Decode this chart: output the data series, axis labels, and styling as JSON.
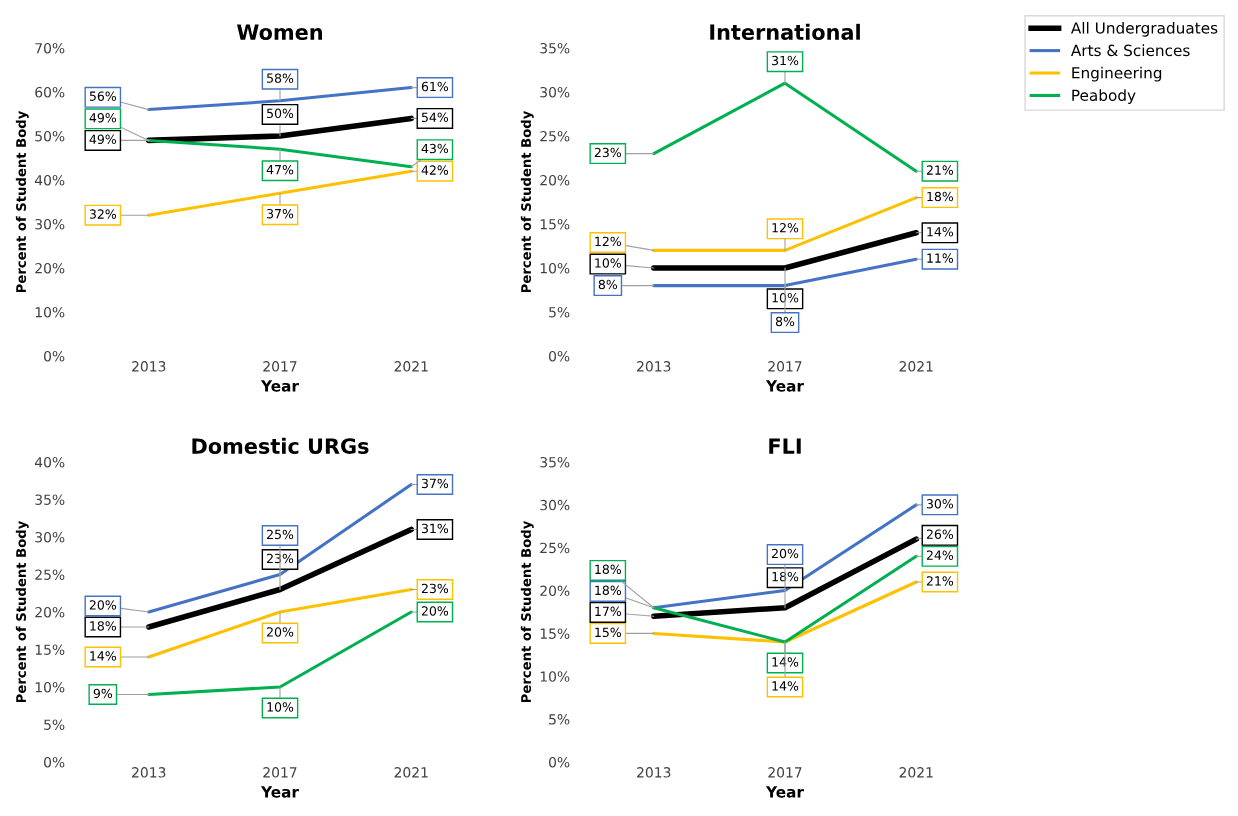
{
  "chart_data": [
    {
      "type": "line",
      "title": "Women",
      "xlabel": "Year",
      "ylabel": "Percent of Student Body",
      "categories": [
        "2013",
        "2017",
        "2021"
      ],
      "ylim": [
        0,
        70
      ],
      "yticks": [
        {
          "value": 0,
          "label": "0%"
        },
        {
          "value": 10,
          "label": "10%"
        },
        {
          "value": 20,
          "label": "20%"
        },
        {
          "value": 30,
          "label": "30%"
        },
        {
          "value": 40,
          "label": "40%"
        },
        {
          "value": 50,
          "label": "50%"
        },
        {
          "value": 60,
          "label": "60%"
        },
        {
          "value": 70,
          "label": "70%"
        }
      ],
      "grid": false,
      "legend": "right",
      "series": [
        {
          "name": "All Undergraduates",
          "color": "#000000",
          "values": [
            49,
            50,
            54
          ],
          "value_labels": [
            "49%",
            "50%",
            "54%"
          ]
        },
        {
          "name": "Arts & Sciences",
          "color": "#4472c4",
          "values": [
            56,
            58,
            61
          ],
          "value_labels": [
            "56%",
            "58%",
            "61%"
          ]
        },
        {
          "name": "Engineering",
          "color": "#ffc000",
          "values": [
            32,
            37,
            42
          ],
          "value_labels": [
            "32%",
            "37%",
            "42%"
          ]
        },
        {
          "name": "Peabody",
          "color": "#00b050",
          "values": [
            49,
            47,
            43
          ],
          "value_labels": [
            "49%",
            "47%",
            "43%"
          ]
        }
      ]
    },
    {
      "type": "line",
      "title": "International",
      "xlabel": "Year",
      "ylabel": "Percent of Student Body",
      "categories": [
        "2013",
        "2017",
        "2021"
      ],
      "ylim": [
        0,
        35
      ],
      "yticks": [
        {
          "value": 0,
          "label": "0%"
        },
        {
          "value": 5,
          "label": "5%"
        },
        {
          "value": 10,
          "label": "10%"
        },
        {
          "value": 15,
          "label": "15%"
        },
        {
          "value": 20,
          "label": "20%"
        },
        {
          "value": 25,
          "label": "25%"
        },
        {
          "value": 30,
          "label": "30%"
        },
        {
          "value": 35,
          "label": "35%"
        }
      ],
      "grid": false,
      "series": [
        {
          "color": "#000000",
          "values": [
            10,
            10,
            14
          ],
          "value_labels": [
            "10%",
            "10%",
            "14%"
          ]
        },
        {
          "color": "#4472c4",
          "values": [
            8,
            8,
            11
          ],
          "value_labels": [
            "8%",
            "8%",
            "11%"
          ]
        },
        {
          "color": "#ffc000",
          "values": [
            12,
            12,
            18
          ],
          "value_labels": [
            "12%",
            "12%",
            "18%"
          ]
        },
        {
          "color": "#00b050",
          "values": [
            23,
            31,
            21
          ],
          "value_labels": [
            "23%",
            "31%",
            "21%"
          ]
        }
      ]
    },
    {
      "type": "line",
      "title": "Domestic URGs",
      "xlabel": "Year",
      "ylabel": "Percent of Student Body",
      "categories": [
        "2013",
        "2017",
        "2021"
      ],
      "ylim": [
        0,
        40
      ],
      "yticks": [
        {
          "value": 0,
          "label": "0%"
        },
        {
          "value": 5,
          "label": "5%"
        },
        {
          "value": 10,
          "label": "10%"
        },
        {
          "value": 15,
          "label": "15%"
        },
        {
          "value": 20,
          "label": "20%"
        },
        {
          "value": 25,
          "label": "25%"
        },
        {
          "value": 30,
          "label": "30%"
        },
        {
          "value": 35,
          "label": "35%"
        },
        {
          "value": 40,
          "label": "40%"
        }
      ],
      "grid": false,
      "series": [
        {
          "color": "#000000",
          "values": [
            18,
            23,
            31
          ],
          "value_labels": [
            "18%",
            "23%",
            "31%"
          ]
        },
        {
          "color": "#4472c4",
          "values": [
            20,
            25,
            37
          ],
          "value_labels": [
            "20%",
            "25%",
            "37%"
          ]
        },
        {
          "color": "#ffc000",
          "values": [
            14,
            20,
            23
          ],
          "value_labels": [
            "14%",
            "20%",
            "23%"
          ]
        },
        {
          "color": "#00b050",
          "values": [
            9,
            10,
            20
          ],
          "value_labels": [
            "9%",
            "10%",
            "20%"
          ]
        }
      ]
    },
    {
      "type": "line",
      "title": "FLI",
      "xlabel": "Year",
      "ylabel": "Percent of Student Body",
      "categories": [
        "2013",
        "2017",
        "2021"
      ],
      "ylim": [
        0,
        35
      ],
      "yticks": [
        {
          "value": 0,
          "label": "0%"
        },
        {
          "value": 5,
          "label": "5%"
        },
        {
          "value": 10,
          "label": "10%"
        },
        {
          "value": 15,
          "label": "15%"
        },
        {
          "value": 20,
          "label": "20%"
        },
        {
          "value": 25,
          "label": "25%"
        },
        {
          "value": 30,
          "label": "30%"
        },
        {
          "value": 35,
          "label": "35%"
        }
      ],
      "grid": false,
      "series": [
        {
          "color": "#000000",
          "values": [
            17,
            18,
            26
          ],
          "value_labels": [
            "17%",
            "18%",
            "26%"
          ]
        },
        {
          "color": "#4472c4",
          "values": [
            18,
            20,
            30
          ],
          "value_labels": [
            "18%",
            "20%",
            "30%"
          ]
        },
        {
          "color": "#ffc000",
          "values": [
            15,
            14,
            21
          ],
          "value_labels": [
            "15%",
            "14%",
            "21%"
          ]
        },
        {
          "color": "#00b050",
          "values": [
            18,
            14,
            24
          ],
          "value_labels": [
            "18%",
            "14%",
            "24%"
          ]
        }
      ]
    }
  ]
}
